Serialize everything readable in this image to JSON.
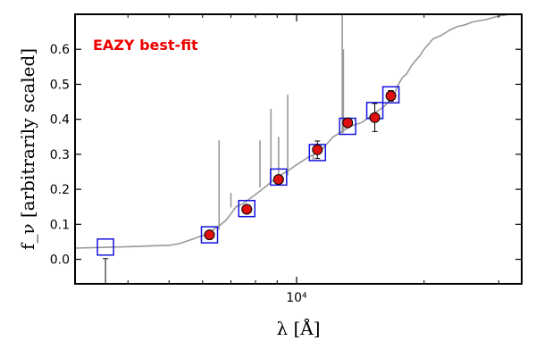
{
  "chart_data": {
    "type": "scatter",
    "title": "",
    "annotation": {
      "text": "EAZY best-fit",
      "color": "#ee0000"
    },
    "xlabel": "λ [Å]",
    "ylabel": "f_ν [arbitrarily scaled]",
    "xscale": "log",
    "xlim": [
      3000,
      34000
    ],
    "ylim": [
      -0.07,
      0.7
    ],
    "yticks": [
      0.0,
      0.1,
      0.2,
      0.3,
      0.4,
      0.5,
      0.6
    ],
    "ytick_labels": [
      "0.0",
      "0.1",
      "0.2",
      "0.3",
      "0.4",
      "0.5",
      "0.6"
    ],
    "xtick_major": [
      10000
    ],
    "xtick_major_labels": [
      "10⁴"
    ],
    "xtick_minor": [
      4000,
      5000,
      6000,
      7000,
      8000,
      9000,
      20000,
      30000
    ],
    "colors": {
      "model": "#999999",
      "model_flux": "#1414dd",
      "observed": "#e01010",
      "errorbar": "#000000"
    },
    "series": [
      {
        "name": "model_sed",
        "kind": "line",
        "x": [
          3000,
          3500,
          4000,
          4500,
          5000,
          5300,
          5600,
          5900,
          6100,
          6200,
          6300,
          6500,
          6800,
          7000,
          7200,
          7500,
          7800,
          8100,
          8400,
          8700,
          9000,
          9300,
          9600,
          10000,
          10300,
          10600,
          11000,
          11400,
          11800,
          12200,
          12600,
          13000,
          13400,
          13800,
          14200,
          14600,
          15000,
          15400,
          15800,
          16200,
          16600,
          17000,
          17400,
          17800,
          18200,
          18600,
          19000,
          19500,
          20000,
          21000,
          22000,
          23000,
          24000,
          25000,
          26000,
          28000,
          30000,
          32000,
          34000
        ],
        "y": [
          0.032,
          0.034,
          0.036,
          0.038,
          0.04,
          0.045,
          0.055,
          0.065,
          0.07,
          0.075,
          0.082,
          0.092,
          0.11,
          0.13,
          0.15,
          0.16,
          0.175,
          0.19,
          0.205,
          0.22,
          0.235,
          0.245,
          0.255,
          0.27,
          0.28,
          0.29,
          0.3,
          0.31,
          0.33,
          0.35,
          0.36,
          0.37,
          0.38,
          0.385,
          0.39,
          0.4,
          0.41,
          0.42,
          0.43,
          0.44,
          0.455,
          0.47,
          0.5,
          0.52,
          0.53,
          0.55,
          0.565,
          0.58,
          0.6,
          0.63,
          0.64,
          0.655,
          0.665,
          0.67,
          0.678,
          0.685,
          0.695,
          0.7,
          0.705
        ]
      },
      {
        "name": "emission_lines",
        "kind": "spikes",
        "x": [
          6563,
          7000,
          8200,
          8700,
          9070,
          9530,
          12820,
          12900,
          10940
        ],
        "base": [
          0.085,
          0.148,
          0.205,
          0.22,
          0.23,
          0.24,
          0.36,
          0.362,
          0.285
        ],
        "peak": [
          0.34,
          0.19,
          0.34,
          0.43,
          0.35,
          0.47,
          0.72,
          0.6,
          0.3
        ]
      },
      {
        "name": "model_flux",
        "kind": "squares",
        "x": [
          3540,
          6230,
          7630,
          9070,
          11200,
          13200,
          15300,
          16700
        ],
        "y": [
          0.035,
          0.07,
          0.145,
          0.235,
          0.305,
          0.38,
          0.425,
          0.47
        ]
      },
      {
        "name": "observed_flux",
        "kind": "points",
        "x": [
          3540,
          6230,
          7630,
          9070,
          11200,
          13200,
          15300,
          16700
        ],
        "y": [
          null,
          0.07,
          0.143,
          0.228,
          0.313,
          0.39,
          0.405,
          0.467
        ],
        "yerr_low": [
          null,
          0.0,
          0.0,
          0.0,
          0.025,
          0.012,
          0.04,
          0.015
        ],
        "yerr_high": [
          null,
          0.0,
          0.0,
          0.0,
          0.025,
          0.012,
          0.04,
          0.015
        ]
      },
      {
        "name": "upper_limit",
        "kind": "errorbar",
        "x": [
          3540
        ],
        "y_from": [
          -0.07
        ],
        "y_to": [
          0.002
        ]
      }
    ]
  }
}
